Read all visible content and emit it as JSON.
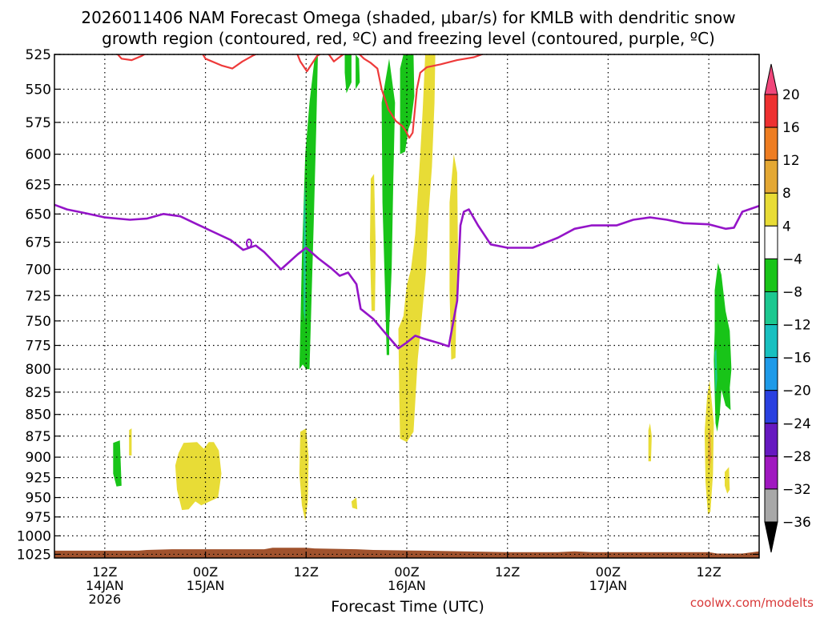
{
  "chart_data": {
    "type": "heatmap",
    "title_lines": [
      "2026011406 NAM Forecast Omega (shaded, μbar/s) for KMLB with dendritic snow",
      "growth region (contoured, red, ºC) and freezing level (contoured, purple, ºC)"
    ],
    "xlabel": "Forecast Time (UTC)",
    "credit": "coolwx.com/modelts",
    "y_axis": {
      "scale": "pressure_log_reversed",
      "units": "hPa",
      "ticks": [
        525,
        550,
        575,
        600,
        625,
        650,
        675,
        700,
        725,
        750,
        775,
        800,
        825,
        850,
        875,
        900,
        925,
        950,
        975,
        1000,
        1025
      ],
      "range": [
        525,
        1030
      ]
    },
    "x_axis": {
      "units": "forecast hour",
      "range": [
        0,
        84
      ],
      "ticks": [
        {
          "hour": 6,
          "lines": [
            "12Z",
            "14JAN",
            "2026"
          ]
        },
        {
          "hour": 18,
          "lines": [
            "00Z",
            "15JAN"
          ]
        },
        {
          "hour": 30,
          "lines": [
            "12Z"
          ]
        },
        {
          "hour": 42,
          "lines": [
            "00Z",
            "16JAN"
          ]
        },
        {
          "hour": 54,
          "lines": [
            "12Z"
          ]
        },
        {
          "hour": 66,
          "lines": [
            "00Z",
            "17JAN"
          ]
        },
        {
          "hour": 78,
          "lines": [
            "12Z"
          ]
        }
      ]
    },
    "grid": true,
    "colorbar": {
      "placement": "right",
      "labels": [
        "20",
        "16",
        "12",
        "8",
        "4",
        "−4",
        "−8",
        "−12",
        "−16",
        "−20",
        "−24",
        "−28",
        "−32",
        "−36"
      ],
      "colors": [
        "#f0467a",
        "#ee3030",
        "#ee7d22",
        "#e4a834",
        "#e8dc36",
        "#ffffff",
        "#18c418",
        "#1cc890",
        "#18c0c0",
        "#1e9ae8",
        "#2a40e0",
        "#6618c0",
        "#a018c0",
        "#a8a8a8",
        "#000000"
      ]
    },
    "series": [
      {
        "name": "freezing level",
        "color": "#9414c8",
        "points": [
          [
            0,
            642
          ],
          [
            1.5,
            646
          ],
          [
            3.5,
            649
          ],
          [
            6,
            653
          ],
          [
            9,
            655
          ],
          [
            11,
            654
          ],
          [
            13,
            650
          ],
          [
            15,
            652
          ],
          [
            17,
            659
          ],
          [
            19,
            666
          ],
          [
            21,
            673
          ],
          [
            22.5,
            682
          ],
          [
            24,
            678
          ],
          [
            25,
            684
          ],
          [
            27,
            700
          ],
          [
            29,
            686
          ],
          [
            30,
            680
          ],
          [
            31.5,
            690
          ],
          [
            33,
            699
          ],
          [
            34,
            706
          ],
          [
            35,
            703
          ],
          [
            36,
            714
          ],
          [
            36.5,
            738
          ],
          [
            38,
            748
          ],
          [
            39,
            758
          ],
          [
            40,
            768
          ],
          [
            41,
            778
          ],
          [
            42,
            772
          ],
          [
            43,
            765
          ],
          [
            44,
            768
          ],
          [
            46,
            773
          ],
          [
            47,
            776
          ],
          [
            48,
            730
          ],
          [
            48.4,
            660
          ],
          [
            48.8,
            648
          ],
          [
            49.4,
            646
          ],
          [
            50.5,
            660
          ],
          [
            52,
            677
          ],
          [
            54,
            680
          ],
          [
            57,
            680
          ],
          [
            59,
            674
          ],
          [
            60,
            671
          ],
          [
            62,
            663
          ],
          [
            64,
            660
          ],
          [
            67,
            660
          ],
          [
            69,
            655
          ],
          [
            71,
            653
          ],
          [
            73,
            655
          ],
          [
            75,
            658
          ],
          [
            78,
            659
          ],
          [
            80,
            663
          ],
          [
            81,
            662
          ],
          [
            82,
            648
          ],
          [
            84,
            643
          ]
        ]
      },
      {
        "name": "dendritic snow growth region",
        "color": "#ee3a3a",
        "lines": [
          [
            [
              7.4,
              524
            ],
            [
              8,
              528
            ],
            [
              9.2,
              529
            ],
            [
              10.4,
              526
            ],
            [
              11,
              524
            ]
          ],
          [
            [
              17.6,
              524
            ],
            [
              18,
              528
            ],
            [
              20,
              533
            ],
            [
              21.2,
              535
            ],
            [
              22.4,
              530
            ],
            [
              23.6,
              526
            ],
            [
              24.3,
              524
            ]
          ],
          [
            [
              28.9,
              524
            ],
            [
              29.3,
              530
            ],
            [
              30.1,
              537
            ],
            [
              31.3,
              526
            ],
            [
              31.9,
              524
            ]
          ],
          [
            [
              32.6,
              524
            ],
            [
              33.3,
              530
            ],
            [
              34.4,
              525
            ],
            [
              34.8,
              524
            ]
          ],
          [
            [
              36.2,
              524
            ],
            [
              36.9,
              528
            ],
            [
              37.7,
              531
            ],
            [
              38.5,
              535
            ],
            [
              39,
              550
            ],
            [
              39.8,
              565
            ],
            [
              40.7,
              574
            ],
            [
              41.5,
              578
            ],
            [
              41.9,
              582
            ],
            [
              42.3,
              587
            ],
            [
              42.7,
              583
            ],
            [
              43.2,
              550
            ],
            [
              43.6,
              538
            ],
            [
              44.4,
              534
            ],
            [
              46,
              532
            ],
            [
              48,
              529
            ],
            [
              50,
              527
            ],
            [
              51.4,
              524
            ]
          ]
        ]
      }
    ],
    "omega_cells": [
      {
        "band": "green",
        "poly": [
          [
            7,
            883
          ],
          [
            7.8,
            880
          ],
          [
            8,
            935
          ],
          [
            7.4,
            936
          ],
          [
            7,
            920
          ]
        ]
      },
      {
        "band": "yellow",
        "poly": [
          [
            8.9,
            868
          ],
          [
            9.2,
            866
          ],
          [
            9.2,
            898
          ],
          [
            8.9,
            898
          ]
        ]
      },
      {
        "band": "yellow",
        "poly": [
          [
            14.8,
            895
          ],
          [
            15.4,
            883
          ],
          [
            17,
            882
          ],
          [
            17.8,
            890
          ],
          [
            18.4,
            882
          ],
          [
            19,
            882
          ],
          [
            19.6,
            892
          ],
          [
            19.9,
            920
          ],
          [
            19.5,
            950
          ],
          [
            18.5,
            955
          ],
          [
            17.5,
            960
          ],
          [
            16.8,
            955
          ],
          [
            16,
            965
          ],
          [
            15.2,
            966
          ],
          [
            14.6,
            940
          ],
          [
            14.4,
            910
          ]
        ]
      },
      {
        "band": "green",
        "poly": [
          [
            29.2,
            800
          ],
          [
            29.5,
            690
          ],
          [
            29.9,
            600
          ],
          [
            30.4,
            560
          ],
          [
            31,
            528
          ],
          [
            31.4,
            525
          ],
          [
            31.2,
            580
          ],
          [
            30.9,
            660
          ],
          [
            30.6,
            740
          ],
          [
            30.4,
            800
          ],
          [
            30,
            800
          ],
          [
            29.6,
            795
          ]
        ]
      },
      {
        "band": "teal",
        "poly": [
          [
            29.7,
            650
          ],
          [
            29.9,
            622
          ],
          [
            30,
            685
          ],
          [
            29.9,
            752
          ],
          [
            29.7,
            740
          ]
        ]
      },
      {
        "band": "yellow",
        "poly": [
          [
            29.3,
            870
          ],
          [
            30,
            866
          ],
          [
            30.3,
            900
          ],
          [
            30.2,
            955
          ],
          [
            29.9,
            980
          ],
          [
            29.5,
            960
          ],
          [
            29.2,
            920
          ]
        ]
      },
      {
        "band": "green",
        "poly": [
          [
            34.6,
            525
          ],
          [
            35.4,
            525
          ],
          [
            35.4,
            545
          ],
          [
            34.8,
            553
          ],
          [
            34.6,
            538
          ]
        ]
      },
      {
        "band": "green",
        "poly": [
          [
            35.9,
            525
          ],
          [
            36.3,
            528
          ],
          [
            36.4,
            545
          ],
          [
            35.9,
            550
          ]
        ]
      },
      {
        "band": "yellow",
        "poly": [
          [
            35.4,
            955
          ],
          [
            36,
            950
          ],
          [
            36.1,
            965
          ],
          [
            35.5,
            963
          ]
        ]
      },
      {
        "band": "yellow",
        "poly": [
          [
            37.7,
            620
          ],
          [
            38.1,
            616
          ],
          [
            38.3,
            680
          ],
          [
            38.2,
            740
          ],
          [
            37.8,
            740
          ],
          [
            37.6,
            680
          ]
        ]
      },
      {
        "band": "green",
        "poly": [
          [
            39,
            560
          ],
          [
            39.9,
            528
          ],
          [
            40.6,
            560
          ],
          [
            40.4,
            620
          ],
          [
            40.2,
            700
          ],
          [
            39.9,
            760
          ],
          [
            39.9,
            785
          ],
          [
            39.6,
            785
          ],
          [
            39.4,
            720
          ],
          [
            39.1,
            640
          ]
        ]
      },
      {
        "band": "green",
        "poly": [
          [
            41.2,
            535
          ],
          [
            41.6,
            525
          ],
          [
            42.8,
            525
          ],
          [
            42.9,
            555
          ],
          [
            42.5,
            575
          ],
          [
            42.2,
            580
          ],
          [
            41.8,
            598
          ],
          [
            41.2,
            600
          ]
        ]
      },
      {
        "band": "yellow",
        "poly": [
          [
            41,
            758
          ],
          [
            41.6,
            745
          ],
          [
            42,
            715
          ],
          [
            42.5,
            700
          ],
          [
            43,
            668
          ],
          [
            43.6,
            600
          ],
          [
            43.9,
            565
          ],
          [
            44.2,
            525
          ],
          [
            45.4,
            525
          ],
          [
            45.3,
            560
          ],
          [
            45,
            610
          ],
          [
            44.6,
            650
          ],
          [
            44.3,
            700
          ],
          [
            43.8,
            745
          ],
          [
            43.3,
            790
          ],
          [
            42.8,
            870
          ],
          [
            42,
            882
          ],
          [
            41.2,
            878
          ],
          [
            41.1,
            830
          ]
        ]
      },
      {
        "band": "yellow",
        "poly": [
          [
            47.1,
            640
          ],
          [
            47.6,
            600
          ],
          [
            48,
            615
          ],
          [
            48.1,
            680
          ],
          [
            47.9,
            740
          ],
          [
            47.8,
            788
          ],
          [
            47.3,
            790
          ],
          [
            47.1,
            720
          ]
        ]
      },
      {
        "band": "yellow",
        "poly": [
          [
            70.8,
            868
          ],
          [
            71,
            860
          ],
          [
            71.2,
            875
          ],
          [
            71.1,
            905
          ],
          [
            70.8,
            905
          ]
        ]
      },
      {
        "band": "yellow",
        "poly": [
          [
            77.8,
            830
          ],
          [
            78.1,
            812
          ],
          [
            78.6,
            860
          ],
          [
            78.5,
            920
          ],
          [
            78.2,
            968
          ],
          [
            77.9,
            972
          ],
          [
            77.6,
            930
          ],
          [
            77.5,
            870
          ]
        ]
      },
      {
        "band": "orange",
        "poly": [
          [
            78,
            870
          ],
          [
            78.2,
            866
          ],
          [
            78.3,
            900
          ],
          [
            78.1,
            915
          ],
          [
            77.9,
            900
          ]
        ]
      },
      {
        "band": "green",
        "poly": [
          [
            78.7,
            720
          ],
          [
            79.1,
            694
          ],
          [
            79.5,
            705
          ],
          [
            80,
            740
          ],
          [
            80.5,
            760
          ],
          [
            80.7,
            800
          ],
          [
            80.5,
            820
          ],
          [
            80.6,
            845
          ],
          [
            80,
            840
          ],
          [
            79.5,
            822
          ],
          [
            79.3,
            850
          ],
          [
            79,
            870
          ],
          [
            78.8,
            860
          ],
          [
            78.6,
            790
          ],
          [
            78.7,
            760
          ]
        ]
      },
      {
        "band": "teal",
        "poly": [
          [
            78.7,
            782
          ],
          [
            78.9,
            778
          ],
          [
            79,
            810
          ],
          [
            78.8,
            830
          ]
        ]
      },
      {
        "band": "yellow",
        "poly": [
          [
            79.9,
            918
          ],
          [
            80.4,
            912
          ],
          [
            80.5,
            940
          ],
          [
            80.2,
            945
          ],
          [
            79.9,
            935
          ]
        ]
      }
    ],
    "surface_fill": {
      "name": "terrain",
      "color": "#a0522d",
      "top": [
        [
          0,
          1020
        ],
        [
          10,
          1020
        ],
        [
          11,
          1019
        ],
        [
          14,
          1018
        ],
        [
          20,
          1018
        ],
        [
          25,
          1018
        ],
        [
          26,
          1016
        ],
        [
          30,
          1016
        ],
        [
          31,
          1017
        ],
        [
          36,
          1018
        ],
        [
          38,
          1019
        ],
        [
          44,
          1020
        ],
        [
          54,
          1022
        ],
        [
          60,
          1022
        ],
        [
          62,
          1021
        ],
        [
          64,
          1022
        ],
        [
          70,
          1022
        ],
        [
          78,
          1022
        ],
        [
          79,
          1024
        ],
        [
          82,
          1024
        ],
        [
          84,
          1021
        ]
      ]
    }
  }
}
